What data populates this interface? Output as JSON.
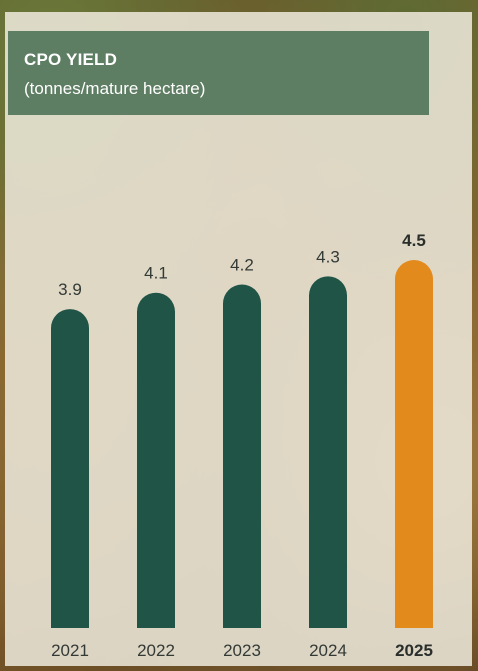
{
  "chart_data": {
    "type": "bar",
    "title": "CPO YIELD",
    "subtitle": "(tonnes/mature hectare)",
    "categories": [
      "2021",
      "2022",
      "2023",
      "2024",
      "2025"
    ],
    "values": [
      3.9,
      4.1,
      4.2,
      4.3,
      4.5
    ],
    "value_labels": [
      "3.9",
      "4.1",
      "4.2",
      "4.3",
      "4.5"
    ],
    "highlight_index": 4,
    "colors": {
      "bar": "#1f5447",
      "highlight": "#e28a1c",
      "title_bg": "#5e7e63"
    },
    "xlabel": "",
    "ylabel": "",
    "grid": false,
    "legend": "none"
  }
}
